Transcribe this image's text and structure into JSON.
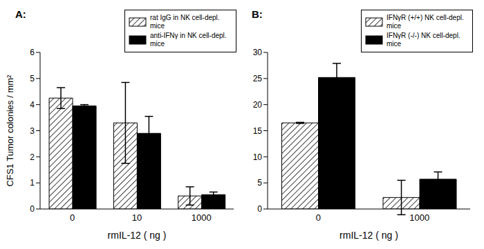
{
  "chart_data": [
    {
      "type": "bar",
      "title": "A:",
      "x_label": "rmIL-12 ( ng )",
      "y_label": "CFS1 Tumor colonies / mm²",
      "categories": [
        "0",
        "10",
        "1000"
      ],
      "series": [
        {
          "name": "rat IgG in NK cell-depl. mice",
          "color": "#ffffff",
          "values": [
            4.25,
            3.3,
            0.5
          ],
          "errors": [
            0.4,
            1.55,
            0.35
          ]
        },
        {
          "name": "anti-IFNγ in NK cell-depl. mice",
          "color": "#000000",
          "values": [
            3.95,
            2.9,
            0.55
          ],
          "errors": [
            0.05,
            0.65,
            0.1
          ]
        }
      ],
      "ylim": [
        0,
        6
      ],
      "yticks": [
        0,
        1,
        2,
        3,
        4,
        5,
        6
      ],
      "grid": false,
      "legend": "upper right"
    },
    {
      "type": "bar",
      "title": "B:",
      "x_label": "rmIL-12 ( ng )",
      "categories": [
        "0",
        "1000"
      ],
      "series": [
        {
          "name": "IFNγR (+/+) NK cell-depl. mice",
          "color": "#ffffff",
          "values": [
            16.5,
            2.2
          ],
          "errors": [
            0.1,
            3.3
          ]
        },
        {
          "name": "IFNγR (-/-) NK cell-depl. mice",
          "color": "#000000",
          "values": [
            25.2,
            5.7
          ],
          "errors": [
            2.7,
            1.4
          ]
        }
      ],
      "ylim": [
        0,
        30
      ],
      "yticks": [
        0,
        5,
        10,
        15,
        20,
        25,
        30
      ],
      "grid": false,
      "legend": "upper right"
    }
  ]
}
